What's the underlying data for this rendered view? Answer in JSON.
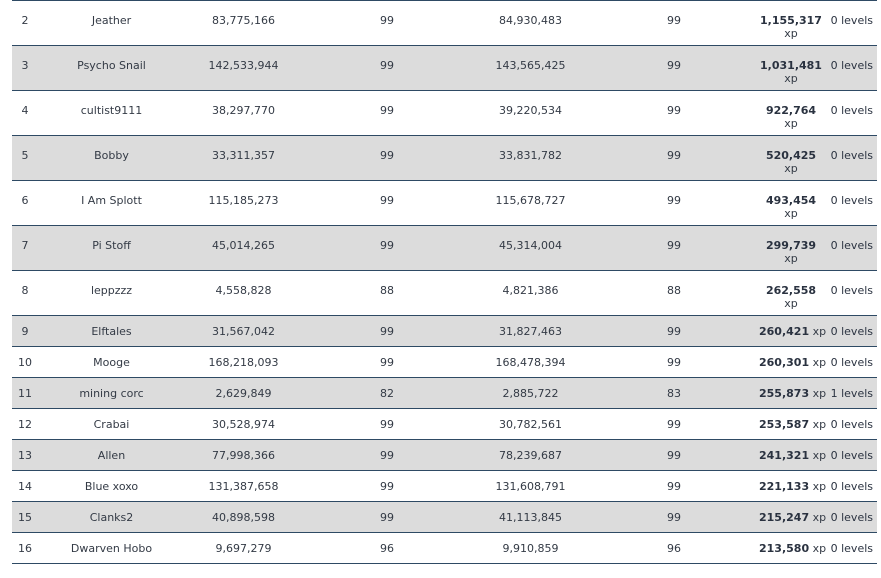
{
  "rows": [
    {
      "rank": "2",
      "name": "Jeather",
      "start_xp": "83,775,166",
      "start_level": "99",
      "end_xp": "84,930,483",
      "end_level": "99",
      "gained": "1,155,317",
      "unit": "xp",
      "levels": "0 levels"
    },
    {
      "rank": "3",
      "name": "Psycho Snail",
      "start_xp": "142,533,944",
      "start_level": "99",
      "end_xp": "143,565,425",
      "end_level": "99",
      "gained": "1,031,481",
      "unit": "xp",
      "levels": "0 levels"
    },
    {
      "rank": "4",
      "name": "cultist9111",
      "start_xp": "38,297,770",
      "start_level": "99",
      "end_xp": "39,220,534",
      "end_level": "99",
      "gained": "922,764",
      "unit": "xp",
      "levels": "0 levels"
    },
    {
      "rank": "5",
      "name": "Bobby",
      "start_xp": "33,311,357",
      "start_level": "99",
      "end_xp": "33,831,782",
      "end_level": "99",
      "gained": "520,425",
      "unit": "xp",
      "levels": "0 levels"
    },
    {
      "rank": "6",
      "name": "I Am Splott",
      "start_xp": "115,185,273",
      "start_level": "99",
      "end_xp": "115,678,727",
      "end_level": "99",
      "gained": "493,454",
      "unit": "xp",
      "levels": "0 levels"
    },
    {
      "rank": "7",
      "name": "Pi Stoff",
      "start_xp": "45,014,265",
      "start_level": "99",
      "end_xp": "45,314,004",
      "end_level": "99",
      "gained": "299,739",
      "unit": "xp",
      "levels": "0 levels"
    },
    {
      "rank": "8",
      "name": "leppzzz",
      "start_xp": "4,558,828",
      "start_level": "88",
      "end_xp": "4,821,386",
      "end_level": "88",
      "gained": "262,558",
      "unit": "xp",
      "levels": "0 levels"
    },
    {
      "rank": "9",
      "name": "Elftales",
      "start_xp": "31,567,042",
      "start_level": "99",
      "end_xp": "31,827,463",
      "end_level": "99",
      "gained": "260,421",
      "unit": "xp",
      "levels": "0 levels"
    },
    {
      "rank": "10",
      "name": "Mooge",
      "start_xp": "168,218,093",
      "start_level": "99",
      "end_xp": "168,478,394",
      "end_level": "99",
      "gained": "260,301",
      "unit": "xp",
      "levels": "0 levels"
    },
    {
      "rank": "11",
      "name": "mining corc",
      "start_xp": "2,629,849",
      "start_level": "82",
      "end_xp": "2,885,722",
      "end_level": "83",
      "gained": "255,873",
      "unit": "xp",
      "levels": "1 levels"
    },
    {
      "rank": "12",
      "name": "Crabai",
      "start_xp": "30,528,974",
      "start_level": "99",
      "end_xp": "30,782,561",
      "end_level": "99",
      "gained": "253,587",
      "unit": "xp",
      "levels": "0 levels"
    },
    {
      "rank": "13",
      "name": "Allen",
      "start_xp": "77,998,366",
      "start_level": "99",
      "end_xp": "78,239,687",
      "end_level": "99",
      "gained": "241,321",
      "unit": "xp",
      "levels": "0 levels"
    },
    {
      "rank": "14",
      "name": "Blue xoxo",
      "start_xp": "131,387,658",
      "start_level": "99",
      "end_xp": "131,608,791",
      "end_level": "99",
      "gained": "221,133",
      "unit": "xp",
      "levels": "0 levels"
    },
    {
      "rank": "15",
      "name": "Clanks2",
      "start_xp": "40,898,598",
      "start_level": "99",
      "end_xp": "41,113,845",
      "end_level": "99",
      "gained": "215,247",
      "unit": "xp",
      "levels": "0 levels"
    },
    {
      "rank": "16",
      "name": "Dwarven Hobo",
      "start_xp": "9,697,279",
      "start_level": "96",
      "end_xp": "9,910,859",
      "end_level": "96",
      "gained": "213,580",
      "unit": "xp",
      "levels": "0 levels"
    }
  ]
}
